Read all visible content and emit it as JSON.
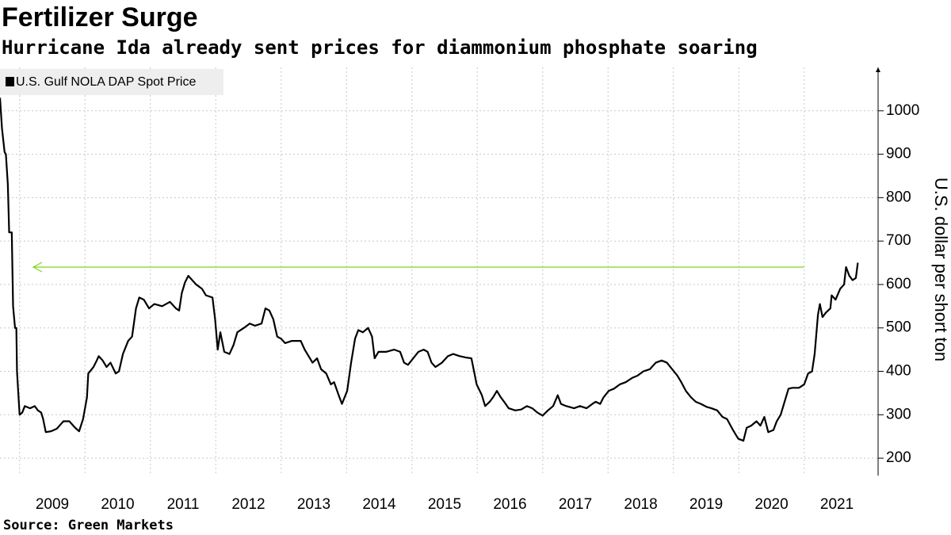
{
  "chart_data": {
    "type": "line",
    "title": "Fertilizer Surge",
    "subtitle": "Hurricane Ida already sent prices for diammonium phosphate soaring",
    "source": "Source: Green Markets",
    "y_axis_label": "U.S. dollar per short ton",
    "xlim": [
      2008.7,
      2022.13
    ],
    "xticks": [
      2009,
      2010,
      2011,
      2012,
      2013,
      2014,
      2015,
      2016,
      2017,
      2018,
      2019,
      2020,
      2021
    ],
    "ylim": [
      160,
      1100
    ],
    "yticks": [
      200,
      300,
      400,
      500,
      600,
      700,
      800,
      900,
      1000
    ],
    "grid": true,
    "legend": "top-left",
    "reference_arrow": {
      "y": 640,
      "x": [
        2021.0,
        2009.21
      ],
      "color": "#7ed321"
    },
    "series": [
      {
        "name": "U.S. Gulf NOLA DAP Spot Price",
        "color": "#000000",
        "x": [
          2008.7,
          2008.73,
          2008.77,
          2008.79,
          2008.82,
          2008.84,
          2008.88,
          2008.9,
          2008.93,
          2008.95,
          2008.96,
          2009.0,
          2009.04,
          2009.08,
          2009.16,
          2009.23,
          2009.28,
          2009.33,
          2009.36,
          2009.4,
          2009.48,
          2009.57,
          2009.67,
          2009.76,
          2009.85,
          2009.91,
          2009.97,
          2010.03,
          2010.05,
          2010.13,
          2010.18,
          2010.21,
          2010.27,
          2010.33,
          2010.39,
          2010.47,
          2010.52,
          2010.58,
          2010.66,
          2010.72,
          2010.78,
          2010.83,
          2010.9,
          2010.98,
          2011.06,
          2011.18,
          2011.3,
          2011.39,
          2011.44,
          2011.48,
          2011.53,
          2011.58,
          2011.64,
          2011.7,
          2011.79,
          2011.85,
          2011.95,
          2011.99,
          2012.03,
          2012.07,
          2012.13,
          2012.21,
          2012.27,
          2012.33,
          2012.43,
          2012.52,
          2012.6,
          2012.7,
          2012.76,
          2012.82,
          2012.88,
          2012.94,
          2013.0,
          2013.06,
          2013.16,
          2013.3,
          2013.36,
          2013.42,
          2013.48,
          2013.55,
          2013.61,
          2013.69,
          2013.76,
          2013.81,
          2013.88,
          2013.93,
          2014.01,
          2014.07,
          2014.13,
          2014.18,
          2014.25,
          2014.33,
          2014.39,
          2014.43,
          2014.49,
          2014.61,
          2014.73,
          2014.82,
          2014.88,
          2014.94,
          2015.02,
          2015.1,
          2015.18,
          2015.24,
          2015.3,
          2015.36,
          2015.46,
          2015.55,
          2015.63,
          2015.73,
          2015.82,
          2015.91,
          2015.95,
          2015.99,
          2016.07,
          2016.12,
          2016.19,
          2016.24,
          2016.3,
          2016.36,
          2016.41,
          2016.48,
          2016.58,
          2016.67,
          2016.76,
          2016.84,
          2016.92,
          2017.0,
          2017.08,
          2017.16,
          2017.23,
          2017.28,
          2017.36,
          2017.48,
          2017.57,
          2017.67,
          2017.76,
          2017.81,
          2017.88,
          2017.93,
          2018.01,
          2018.09,
          2018.18,
          2018.27,
          2018.37,
          2018.45,
          2018.54,
          2018.64,
          2018.73,
          2018.82,
          2018.9,
          2018.98,
          2019.06,
          2019.12,
          2019.19,
          2019.27,
          2019.34,
          2019.42,
          2019.51,
          2019.58,
          2019.67,
          2019.75,
          2019.82,
          2019.91,
          2019.99,
          2020.07,
          2020.12,
          2020.19,
          2020.27,
          2020.33,
          2020.39,
          2020.45,
          2020.53,
          2020.58,
          2020.64,
          2020.7,
          2020.76,
          2020.82,
          2020.92,
          2021.0,
          2021.06,
          2021.12,
          2021.16,
          2021.21,
          2021.24,
          2021.28,
          2021.33,
          2021.4,
          2021.42,
          2021.48,
          2021.55,
          2021.61,
          2021.64,
          2021.69,
          2021.74,
          2021.79,
          2021.82
        ],
        "values": [
          1030,
          960,
          905,
          900,
          830,
          720,
          720,
          550,
          500,
          500,
          400,
          300,
          305,
          320,
          315,
          320,
          310,
          305,
          290,
          260,
          262,
          268,
          285,
          285,
          270,
          262,
          290,
          340,
          395,
          410,
          425,
          435,
          425,
          410,
          420,
          395,
          400,
          440,
          470,
          480,
          545,
          570,
          565,
          545,
          555,
          550,
          560,
          545,
          540,
          580,
          605,
          620,
          610,
          600,
          590,
          575,
          570,
          520,
          450,
          490,
          445,
          440,
          460,
          490,
          500,
          510,
          505,
          510,
          545,
          540,
          520,
          480,
          475,
          465,
          470,
          470,
          450,
          435,
          420,
          430,
          405,
          395,
          370,
          375,
          345,
          325,
          355,
          420,
          475,
          495,
          490,
          500,
          480,
          430,
          445,
          445,
          450,
          445,
          420,
          415,
          430,
          445,
          450,
          445,
          420,
          410,
          420,
          435,
          440,
          435,
          432,
          430,
          400,
          370,
          345,
          320,
          330,
          340,
          355,
          340,
          330,
          315,
          310,
          312,
          320,
          315,
          305,
          298,
          310,
          320,
          345,
          325,
          320,
          315,
          320,
          315,
          325,
          330,
          325,
          340,
          355,
          360,
          370,
          375,
          385,
          390,
          400,
          405,
          420,
          425,
          420,
          405,
          390,
          375,
          355,
          340,
          330,
          325,
          318,
          315,
          310,
          295,
          290,
          265,
          245,
          240,
          270,
          275,
          285,
          275,
          295,
          260,
          265,
          285,
          300,
          330,
          360,
          362,
          362,
          370,
          395,
          400,
          440,
          530,
          555,
          525,
          535,
          545,
          575,
          565,
          590,
          600,
          640,
          620,
          610,
          615,
          650
        ]
      }
    ]
  }
}
